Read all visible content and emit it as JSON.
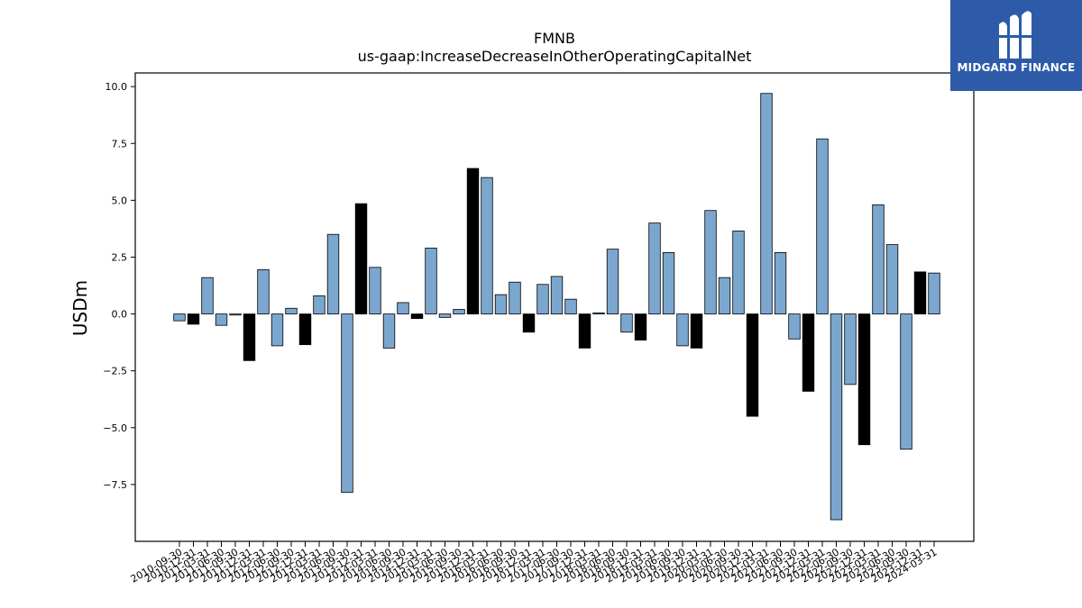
{
  "chart_data": {
    "type": "bar",
    "title": "FMNB",
    "subtitle": "us-gaap:IncreaseDecreaseInOtherOperatingCapitalNet",
    "ylabel": "USDm",
    "xlabel": "",
    "ylim": [
      -10.0,
      10.6
    ],
    "yticks": [
      10.0,
      7.5,
      5.0,
      2.5,
      0.0,
      -2.5,
      -5.0,
      -7.5
    ],
    "ytick_labels": [
      "10.0",
      "7.5",
      "5.0",
      "2.5",
      "0.0",
      "−2.5",
      "−5.0",
      "−7.5"
    ],
    "grid": false,
    "colors": {
      "quarter": "#7ba7cf",
      "annual": "#000000",
      "edge": "#000000"
    },
    "categories": [
      "2010-09-30",
      "2010-12-31",
      "2011-03-31",
      "2011-06-30",
      "2011-09-30",
      "2011-12-31",
      "2012-03-31",
      "2012-06-30",
      "2012-09-30",
      "2012-12-31",
      "2013-03-31",
      "2013-06-30",
      "2013-09-30",
      "2013-12-31",
      "2014-03-31",
      "2014-06-30",
      "2014-09-30",
      "2014-12-31",
      "2015-03-31",
      "2015-06-30",
      "2015-09-30",
      "2015-12-31",
      "2016-03-31",
      "2016-06-30",
      "2016-09-30",
      "2016-12-31",
      "2017-03-31",
      "2017-06-30",
      "2017-09-30",
      "2017-12-31",
      "2018-03-31",
      "2018-06-30",
      "2018-09-30",
      "2018-12-31",
      "2019-03-31",
      "2019-06-30",
      "2019-09-30",
      "2019-12-31",
      "2020-03-31",
      "2020-06-30",
      "2020-09-30",
      "2020-12-31",
      "2021-03-31",
      "2021-06-30",
      "2021-09-30",
      "2021-12-31",
      "2022-03-31",
      "2022-06-30",
      "2022-09-30",
      "2022-12-31",
      "2023-03-31",
      "2023-06-30",
      "2023-09-30",
      "2023-12-31",
      "2024-03-31"
    ],
    "values": [
      -0.3,
      -0.45,
      1.6,
      -0.5,
      -0.05,
      -2.05,
      1.95,
      -1.4,
      0.25,
      -1.35,
      0.8,
      3.5,
      -7.85,
      4.85,
      2.05,
      -1.5,
      0.5,
      -0.2,
      2.9,
      -0.15,
      0.2,
      6.4,
      6.0,
      0.85,
      1.4,
      -0.8,
      1.3,
      1.65,
      0.65,
      -1.5,
      0.05,
      2.85,
      -0.8,
      -1.15,
      4.0,
      2.7,
      -1.4,
      -1.5,
      4.55,
      1.6,
      3.65,
      -4.5,
      9.7,
      2.7,
      -1.1,
      -3.4,
      7.7,
      -9.05,
      -3.1,
      -5.75,
      4.8,
      3.05,
      -5.95,
      1.85,
      1.8
    ],
    "annual": [
      false,
      true,
      false,
      false,
      false,
      true,
      false,
      false,
      false,
      true,
      false,
      false,
      false,
      true,
      false,
      false,
      false,
      true,
      false,
      false,
      false,
      true,
      false,
      false,
      false,
      true,
      false,
      false,
      false,
      true,
      false,
      false,
      false,
      true,
      false,
      false,
      false,
      true,
      false,
      false,
      false,
      true,
      false,
      false,
      false,
      true,
      false,
      false,
      false,
      true,
      false,
      false,
      false,
      true,
      false
    ]
  },
  "branding": {
    "logo_text": "MIDGARD FINANCE"
  }
}
